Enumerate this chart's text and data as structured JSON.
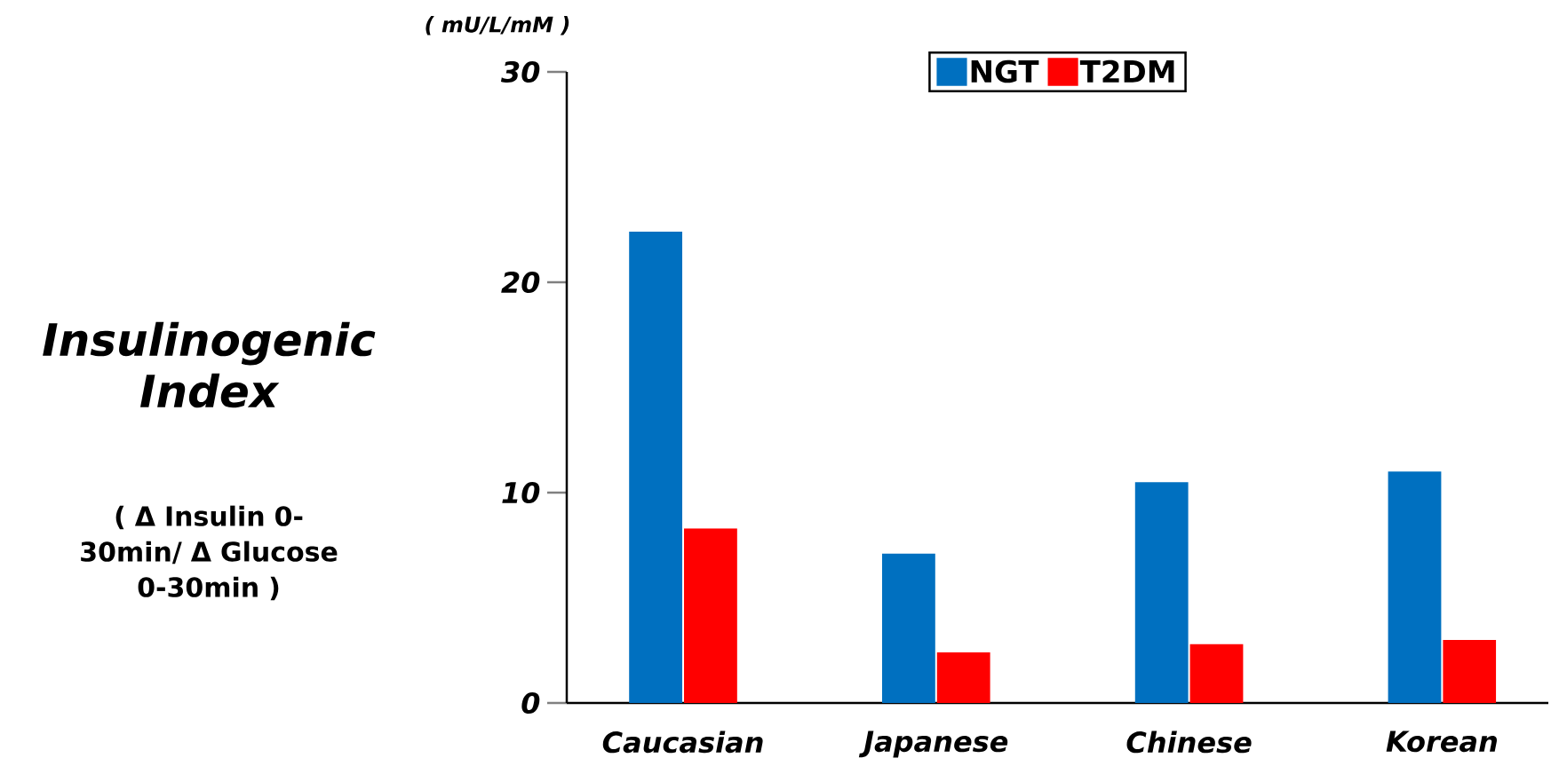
{
  "chart_data": {
    "type": "bar",
    "ylabel": "Insulinogenic Index",
    "annotations": [
      "( mU/L/mM )",
      "( Δ Insulin 0-30min/ Δ Glucose 0-30min )"
    ],
    "categories": [
      "Caucasian",
      "Japanese",
      "Chinese",
      "Korean"
    ],
    "series": [
      {
        "name": "NGT",
        "color": "#0070c0",
        "values": [
          22.4,
          7.1,
          10.5,
          11.0
        ]
      },
      {
        "name": "T2DM",
        "color": "#ff0000",
        "values": [
          8.3,
          2.4,
          2.8,
          3.0
        ]
      }
    ],
    "ylim": [
      0,
      30
    ],
    "yticks": [
      0,
      10,
      20,
      30
    ],
    "legend": "top",
    "grid": false
  }
}
